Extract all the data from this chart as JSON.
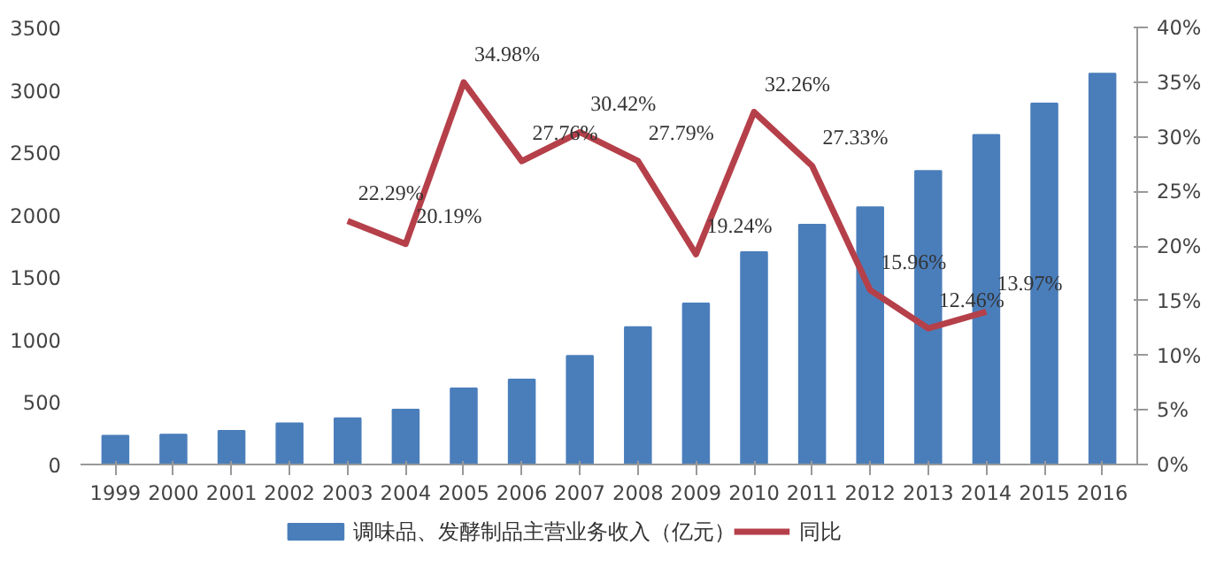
{
  "chart_data": {
    "type": "bar",
    "categories": [
      "1999",
      "2000",
      "2001",
      "2002",
      "2003",
      "2004",
      "2005",
      "2006",
      "2007",
      "2008",
      "2009",
      "2010",
      "2011",
      "2012",
      "2013",
      "2014",
      "2015",
      "2016"
    ],
    "series": [
      {
        "name": "调味品、发酵制品主营业务收入（亿元）",
        "color": "#4a7ebb",
        "values": [
          230,
          240,
          270,
          330,
          370,
          440,
          610,
          680,
          870,
          1100,
          1290,
          1700,
          1920,
          2060,
          2350,
          2640,
          2890,
          3130
        ]
      },
      {
        "name": "同比",
        "type": "line",
        "axis": "y2",
        "color": "#b5404a",
        "values": [
          null,
          null,
          null,
          null,
          22.29,
          20.19,
          34.98,
          27.76,
          30.42,
          27.79,
          19.24,
          32.26,
          27.33,
          15.96,
          12.46,
          13.97,
          null,
          null
        ],
        "value_labels": [
          null,
          null,
          null,
          null,
          "22.29%",
          "20.19%",
          "34.98%",
          "27.76%",
          "30.42%",
          "27.79%",
          "19.24%",
          "32.26%",
          "27.33%",
          "15.96%",
          "12.46%",
          "13.97%",
          null,
          null
        ]
      }
    ],
    "ylim": [
      0,
      3500
    ],
    "yticks": [
      0,
      500,
      1000,
      1500,
      2000,
      2500,
      3000,
      3500
    ],
    "y2lim": [
      0,
      40
    ],
    "y2ticks": [
      {
        "value": 0,
        "label": "0%"
      },
      {
        "value": 5,
        "label": "5%"
      },
      {
        "value": 10,
        "label": "10%"
      },
      {
        "value": 15,
        "label": "15%"
      },
      {
        "value": 20,
        "label": "20%"
      },
      {
        "value": 25,
        "label": "25%"
      },
      {
        "value": 30,
        "label": "30%"
      },
      {
        "value": 35,
        "label": "35%"
      },
      {
        "value": 40,
        "label": "40%"
      }
    ],
    "grid": false,
    "legend": "bottom"
  }
}
